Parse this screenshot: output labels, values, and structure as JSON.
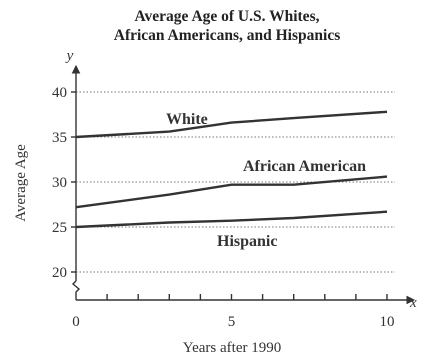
{
  "chart_data": {
    "type": "line",
    "title_lines": [
      "Average Age of U.S. Whites,",
      "African Americans, and Hispanics"
    ],
    "xlabel": "Years after 1990",
    "ylabel": "Average Age",
    "x_var": "x",
    "y_var": "y",
    "xlim": [
      0,
      10
    ],
    "ylim": [
      20,
      40
    ],
    "y_axis_break": true,
    "grid": "horizontal dotted",
    "x_ticks": [
      0,
      5,
      10
    ],
    "y_ticks": [
      20,
      25,
      30,
      35,
      40
    ],
    "series": [
      {
        "name": "White",
        "x": [
          0,
          3,
          5,
          7,
          10
        ],
        "y": [
          35.0,
          35.6,
          36.6,
          37.1,
          37.8
        ]
      },
      {
        "name": "African American",
        "x": [
          0,
          3,
          5,
          7,
          10
        ],
        "y": [
          27.2,
          28.6,
          29.7,
          29.7,
          30.6
        ]
      },
      {
        "name": "Hispanic",
        "x": [
          0,
          3,
          5,
          7,
          10
        ],
        "y": [
          25.0,
          25.5,
          25.7,
          26.0,
          26.7
        ]
      }
    ]
  }
}
